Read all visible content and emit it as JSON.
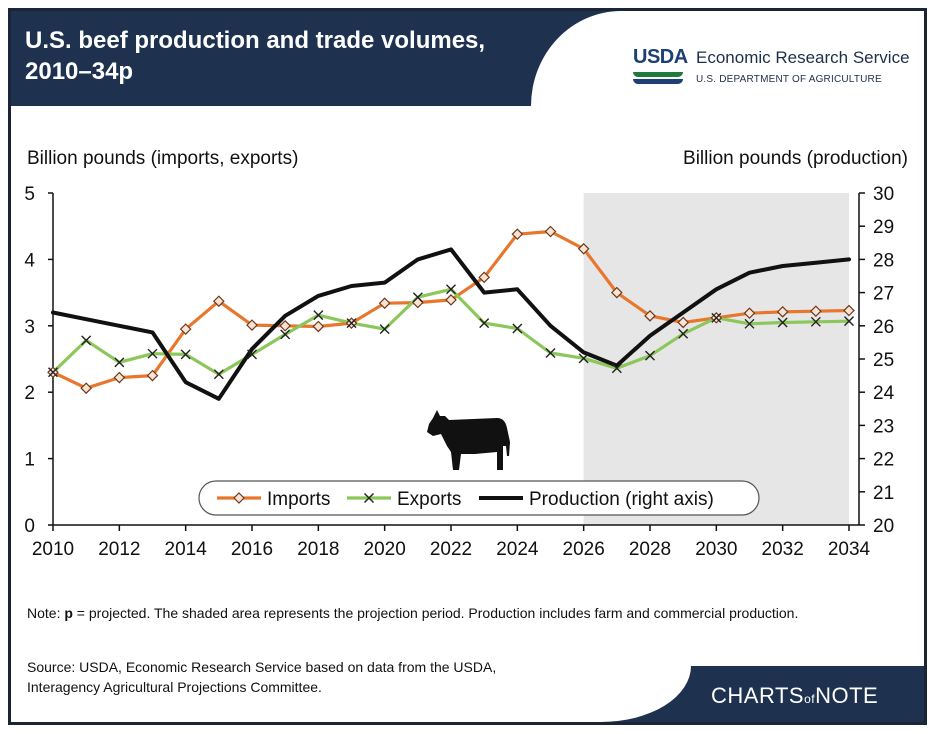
{
  "header": {
    "title_line1": "U.S. beef production and trade volumes,",
    "title_line2": "2010–34p"
  },
  "logo": {
    "mark": "USDA",
    "agency": "Economic Research Service",
    "department": "U.S. DEPARTMENT OF AGRICULTURE"
  },
  "footer": {
    "note_label": "Note: ",
    "note_bold": "p",
    "note_text": " = projected. The shaded area represents the projection period. Production includes farm and commercial production.",
    "source_line1": "Source: USDA, Economic Research Service based on data from the USDA,",
    "source_line2": "Interagency Agricultural Projections Committee.",
    "brand_a": "CHARTS",
    "brand_of": "of",
    "brand_b": "NOTE"
  },
  "chart_data": {
    "type": "line",
    "left_axis_title": "Billion pounds (imports, exports)",
    "right_axis_title": "Billion pounds (production)",
    "x": [
      2010,
      2011,
      2012,
      2013,
      2014,
      2015,
      2016,
      2017,
      2018,
      2019,
      2020,
      2021,
      2022,
      2023,
      2024,
      2025,
      2026,
      2027,
      2028,
      2029,
      2030,
      2031,
      2032,
      2033,
      2034
    ],
    "x_ticks": [
      "2010",
      "2012",
      "2014",
      "2016",
      "2018",
      "2020",
      "2022",
      "2024",
      "2026",
      "2028",
      "2030",
      "2032",
      "2034"
    ],
    "ylim_left": [
      0,
      5
    ],
    "yticks_left": [
      "0",
      "1",
      "2",
      "3",
      "4",
      "5"
    ],
    "ylim_right": [
      20,
      30
    ],
    "yticks_right": [
      "20",
      "21",
      "22",
      "23",
      "24",
      "25",
      "26",
      "27",
      "28",
      "29",
      "30"
    ],
    "projection_start": 2026,
    "projection_end": 2034,
    "series": [
      {
        "name": "Imports",
        "axis": "left",
        "color": "#e8772e",
        "marker": "diamond",
        "values": [
          2.3,
          2.06,
          2.22,
          2.25,
          2.95,
          3.37,
          3.01,
          3.0,
          2.99,
          3.04,
          3.34,
          3.35,
          3.39,
          3.73,
          4.38,
          4.42,
          4.16,
          3.5,
          3.15,
          3.05,
          3.12,
          3.19,
          3.21,
          3.22,
          3.23
        ]
      },
      {
        "name": "Exports",
        "axis": "left",
        "color": "#8bc75a",
        "marker": "x",
        "values": [
          2.3,
          2.78,
          2.45,
          2.58,
          2.57,
          2.27,
          2.57,
          2.87,
          3.16,
          3.04,
          2.95,
          3.43,
          3.55,
          3.04,
          2.96,
          2.59,
          2.51,
          2.36,
          2.55,
          2.88,
          3.12,
          3.03,
          3.05,
          3.06,
          3.07
        ]
      },
      {
        "name": "Production (right axis)",
        "axis": "right",
        "color": "#111111",
        "marker": "none",
        "values": [
          26.4,
          26.2,
          26.0,
          25.8,
          24.3,
          23.8,
          25.3,
          26.3,
          26.9,
          27.2,
          27.3,
          28.0,
          28.3,
          27.0,
          27.1,
          26.0,
          25.2,
          24.8,
          25.7,
          26.4,
          27.1,
          27.6,
          27.8,
          27.9,
          28.0
        ]
      }
    ]
  }
}
